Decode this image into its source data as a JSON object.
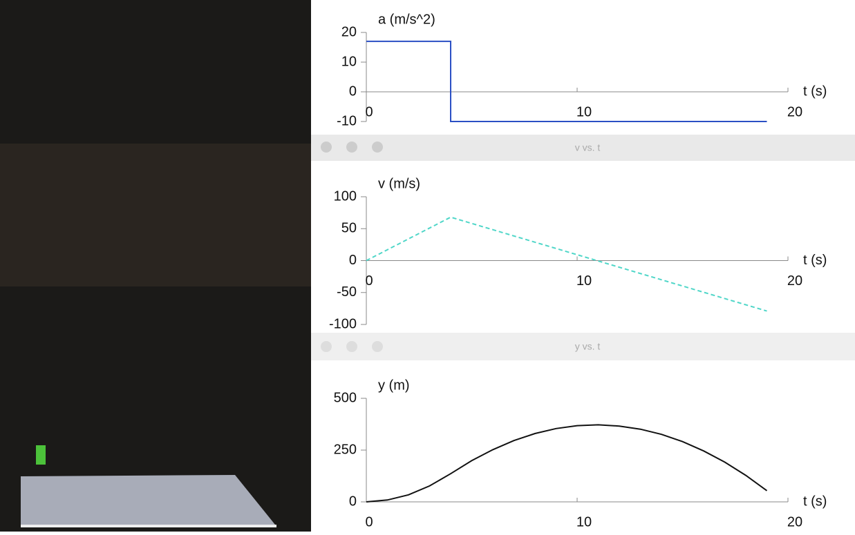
{
  "chart_data": [
    {
      "type": "line",
      "x_label": "t (s)",
      "y_label": "a (m/s^2)",
      "x": [
        0,
        4,
        4,
        19
      ],
      "series": [
        {
          "color": "#2a4fc4",
          "line_style": "solid",
          "values": [
            17,
            17,
            -10,
            -10
          ]
        }
      ],
      "xlim": [
        0,
        20
      ],
      "xticks": [
        0,
        10,
        20
      ],
      "ylim": [
        -10,
        20
      ],
      "yticks": [
        -10,
        0,
        10,
        20
      ]
    },
    {
      "type": "line",
      "title": "v vs. t",
      "x_label": "t (s)",
      "y_label": "v (m/s)",
      "x": [
        0,
        4,
        19
      ],
      "series": [
        {
          "color": "#4fd6c8",
          "line_style": "dashed",
          "values": [
            0,
            68,
            -79
          ]
        }
      ],
      "xlim": [
        0,
        20
      ],
      "xticks": [
        0,
        10,
        20
      ],
      "ylim": [
        -100,
        100
      ],
      "yticks": [
        -100,
        -50,
        0,
        50,
        100
      ]
    },
    {
      "type": "line",
      "title": "y vs. t",
      "x_label": "t (s)",
      "y_label": "y (m)",
      "x": [
        0,
        1,
        2,
        3,
        4,
        5,
        6,
        7,
        8,
        9,
        10,
        11,
        12,
        13,
        14,
        15,
        16,
        17,
        18,
        19
      ],
      "series": [
        {
          "color": "#111111",
          "line_style": "solid",
          "values": [
            0,
            9,
            34,
            77,
            136,
            199,
            252,
            296,
            330,
            354,
            368,
            372,
            366,
            351,
            326,
            291,
            246,
            192,
            128,
            54
          ]
        }
      ],
      "xlim": [
        0,
        20
      ],
      "xticks": [
        0,
        10,
        20
      ],
      "ylim": [
        0,
        500
      ],
      "yticks": [
        0,
        250,
        500
      ]
    }
  ]
}
